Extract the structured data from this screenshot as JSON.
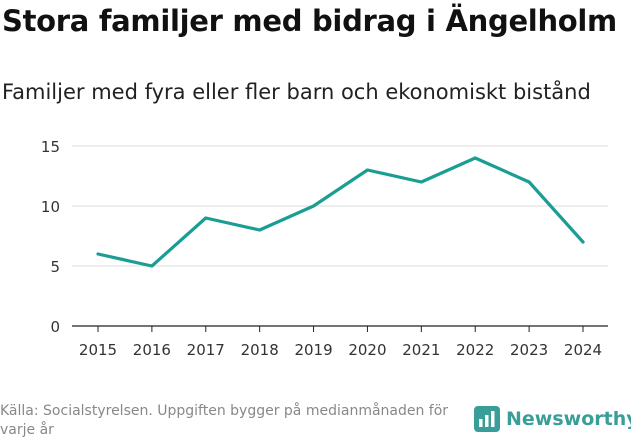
{
  "title": "Stora familjer med bidrag i Ängelholm",
  "subtitle": "Familjer med fyra eller fler barn och ekonomiskt bistånd",
  "chart_data": {
    "type": "line",
    "x": [
      "2015",
      "2016",
      "2017",
      "2018",
      "2019",
      "2020",
      "2021",
      "2022",
      "2023",
      "2024"
    ],
    "series": [
      {
        "name": "Familjer med fyra eller fler barn och ekonomiskt bistånd",
        "values": [
          6,
          5,
          9,
          8,
          10,
          13,
          12,
          14,
          12,
          7
        ]
      }
    ],
    "yticks": [
      0,
      5,
      10,
      15
    ],
    "ylim": [
      0,
      16
    ],
    "line_color": "#1a9e93",
    "grid_color": "#dddddd"
  },
  "footer": {
    "source": "Källa: Socialstyrelsen. Uppgiften bygger på medianmånaden för varje år"
  },
  "brand": {
    "name": "Newsworthy",
    "icon": "newsworthy-logo-icon",
    "color": "#3a9e98"
  }
}
